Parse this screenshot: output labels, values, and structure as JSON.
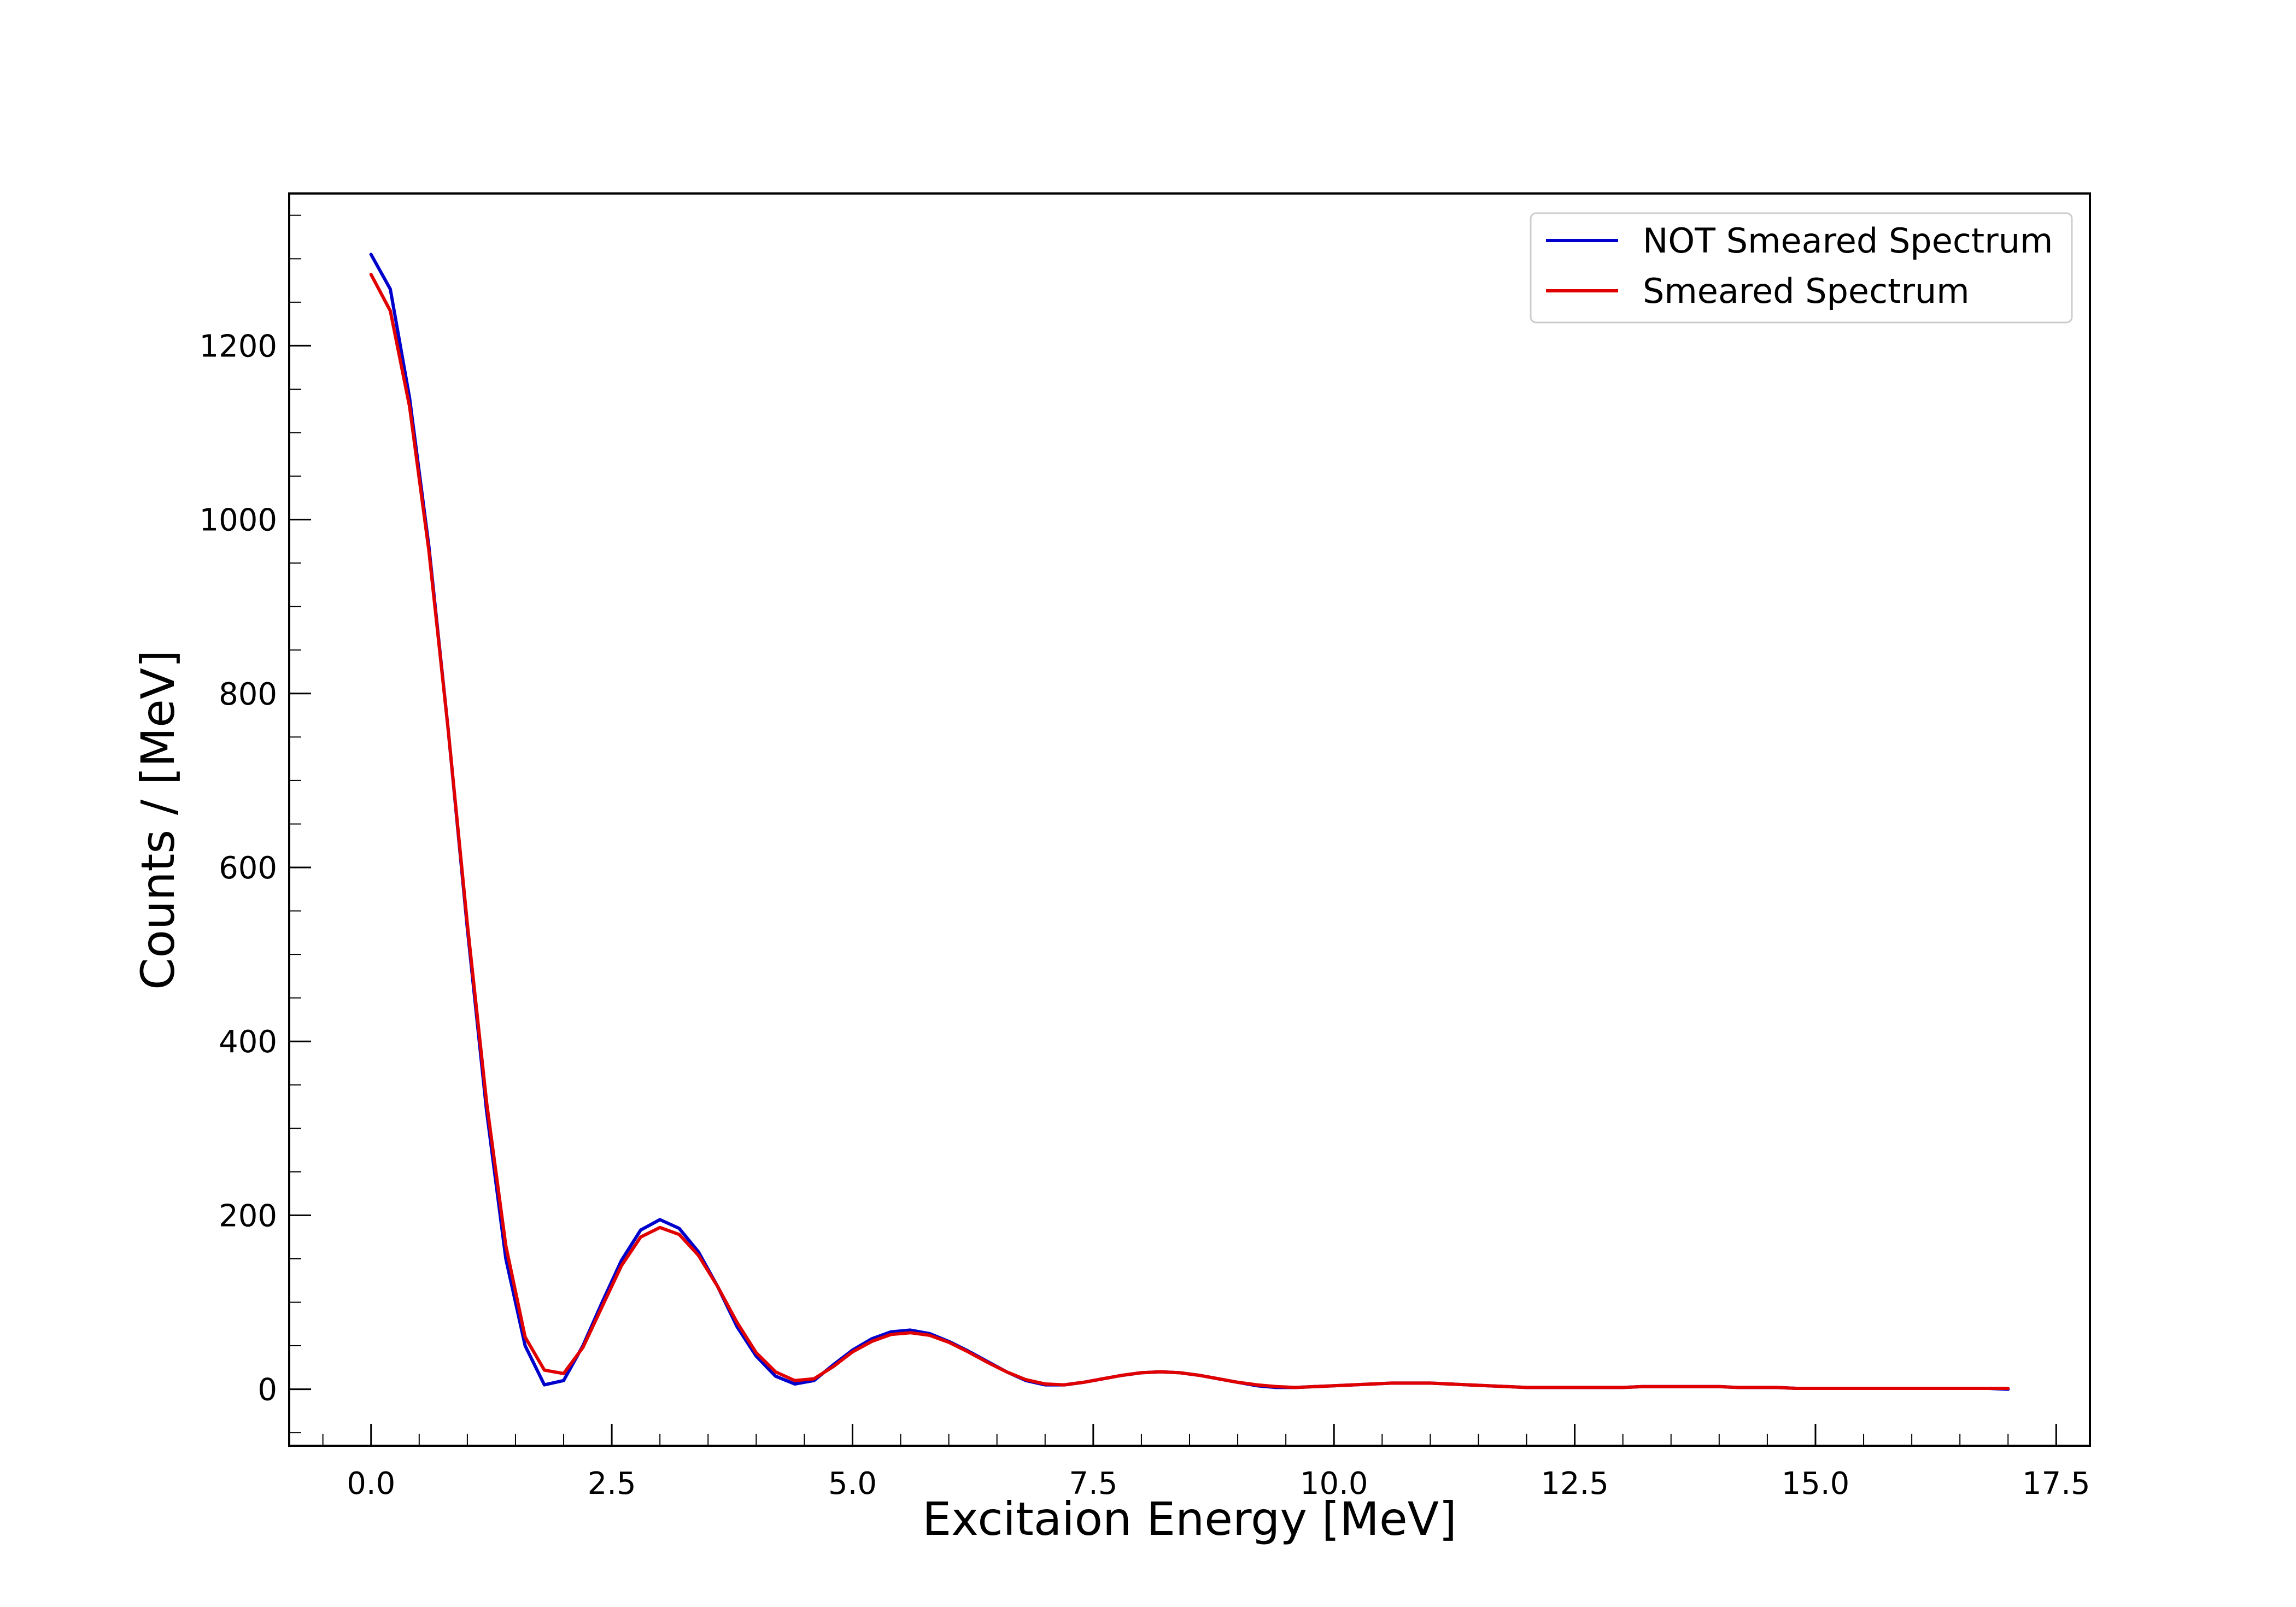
{
  "chart_data": {
    "type": "line",
    "title": "",
    "xlabel": "Excitaion Energy [MeV]",
    "ylabel": "Counts / [MeV]",
    "xlim": [
      -0.85,
      17.85
    ],
    "ylim": [
      -65,
      1375
    ],
    "xticks": [
      0.0,
      2.5,
      5.0,
      7.5,
      10.0,
      12.5,
      15.0,
      17.5
    ],
    "xtick_labels": [
      "0.0",
      "2.5",
      "5.0",
      "7.5",
      "10.0",
      "12.5",
      "15.0",
      "17.5"
    ],
    "yticks": [
      0,
      200,
      400,
      600,
      800,
      1000,
      1200
    ],
    "ytick_labels": [
      "0",
      "200",
      "400",
      "600",
      "800",
      "1000",
      "1200"
    ],
    "grid": false,
    "legend_position": "top-right",
    "series": [
      {
        "name": "NOT Smeared Spectrum",
        "color": "#0000cc",
        "x": [
          0.0,
          0.2,
          0.4,
          0.6,
          0.8,
          1.0,
          1.2,
          1.4,
          1.6,
          1.8,
          2.0,
          2.2,
          2.4,
          2.6,
          2.8,
          3.0,
          3.2,
          3.4,
          3.6,
          3.8,
          4.0,
          4.2,
          4.4,
          4.6,
          4.8,
          5.0,
          5.2,
          5.4,
          5.6,
          5.8,
          6.0,
          6.2,
          6.4,
          6.6,
          6.8,
          7.0,
          7.2,
          7.4,
          7.6,
          7.8,
          8.0,
          8.2,
          8.4,
          8.6,
          8.8,
          9.0,
          9.2,
          9.4,
          9.6,
          9.8,
          10.0,
          10.2,
          10.4,
          10.6,
          10.8,
          11.0,
          11.2,
          11.4,
          11.6,
          11.8,
          12.0,
          12.2,
          12.4,
          12.6,
          12.8,
          13.0,
          13.2,
          13.4,
          13.6,
          13.8,
          14.0,
          14.2,
          14.4,
          14.6,
          14.8,
          15.0,
          15.2,
          15.4,
          15.6,
          15.8,
          16.0,
          16.2,
          16.4,
          16.6,
          16.8,
          17.0
        ],
        "y": [
          1305,
          1265,
          1140,
          970,
          760,
          530,
          320,
          150,
          50,
          5,
          10,
          50,
          100,
          148,
          183,
          195,
          185,
          158,
          118,
          72,
          38,
          15,
          6,
          10,
          28,
          45,
          58,
          66,
          68,
          64,
          55,
          44,
          32,
          20,
          10,
          5,
          5,
          8,
          12,
          16,
          19,
          20,
          19,
          16,
          12,
          8,
          4,
          2,
          2,
          3,
          4,
          5,
          6,
          7,
          7,
          7,
          6,
          5,
          4,
          3,
          2,
          2,
          2,
          2,
          2,
          2,
          3,
          3,
          3,
          3,
          3,
          2,
          2,
          2,
          1,
          1,
          1,
          1,
          1,
          1,
          1,
          1,
          1,
          1,
          1,
          0
        ]
      },
      {
        "name": "Smeared Spectrum",
        "color": "#e00000",
        "x": [
          0.0,
          0.2,
          0.4,
          0.6,
          0.8,
          1.0,
          1.2,
          1.4,
          1.6,
          1.8,
          2.0,
          2.2,
          2.4,
          2.6,
          2.8,
          3.0,
          3.2,
          3.4,
          3.6,
          3.8,
          4.0,
          4.2,
          4.4,
          4.6,
          4.8,
          5.0,
          5.2,
          5.4,
          5.6,
          5.8,
          6.0,
          6.2,
          6.4,
          6.6,
          6.8,
          7.0,
          7.2,
          7.4,
          7.6,
          7.8,
          8.0,
          8.2,
          8.4,
          8.6,
          8.8,
          9.0,
          9.2,
          9.4,
          9.6,
          9.8,
          10.0,
          10.2,
          10.4,
          10.6,
          10.8,
          11.0,
          11.2,
          11.4,
          11.6,
          11.8,
          12.0,
          12.2,
          12.4,
          12.6,
          12.8,
          13.0,
          13.2,
          13.4,
          13.6,
          13.8,
          14.0,
          14.2,
          14.4,
          14.6,
          14.8,
          15.0,
          15.2,
          15.4,
          15.6,
          15.8,
          16.0,
          16.2,
          16.4,
          16.6,
          16.8,
          17.0
        ],
        "y": [
          1282,
          1240,
          1130,
          965,
          760,
          535,
          330,
          165,
          60,
          22,
          18,
          48,
          95,
          142,
          175,
          186,
          178,
          154,
          118,
          77,
          42,
          20,
          10,
          12,
          26,
          43,
          55,
          63,
          65,
          62,
          54,
          43,
          31,
          20,
          11,
          6,
          5,
          8,
          12,
          16,
          19,
          20,
          19,
          16,
          12,
          8,
          5,
          3,
          2,
          3,
          4,
          5,
          6,
          7,
          7,
          7,
          6,
          5,
          4,
          3,
          2,
          2,
          2,
          2,
          2,
          2,
          3,
          3,
          3,
          3,
          3,
          2,
          2,
          2,
          1,
          1,
          1,
          1,
          1,
          1,
          1,
          1,
          1,
          1,
          1,
          1
        ]
      }
    ]
  }
}
